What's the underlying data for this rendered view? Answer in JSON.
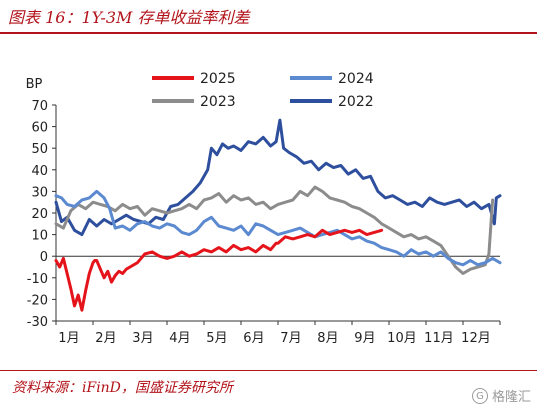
{
  "header": {
    "title": "图表 16：1Y-3M 存单收益率利差"
  },
  "footer": {
    "source": "资料来源：iFinD，国盛证券研究所",
    "watermark": "格隆汇"
  },
  "chart_data": {
    "type": "line",
    "title": "图表 16：1Y-3M 存单收益率利差",
    "ylabel": "BP",
    "xlabel": "",
    "ylim": [
      -30,
      70
    ],
    "yticks": [
      -30,
      -20,
      -10,
      0,
      10,
      20,
      30,
      40,
      50,
      60,
      70
    ],
    "x_tick_labels": [
      "1月",
      "2月",
      "3月",
      "4月",
      "5月",
      "6月",
      "7月",
      "8月",
      "9月",
      "10月",
      "11月",
      "12月"
    ],
    "xlim": [
      1,
      13
    ],
    "grid": false,
    "legend_placement": "top",
    "legend_order": [
      "2025",
      "2024",
      "2023",
      "2022"
    ],
    "series": [
      {
        "name": "2022",
        "color": "#2e4f9e",
        "width": 3,
        "x": [
          1.0,
          1.15,
          1.3,
          1.5,
          1.7,
          1.9,
          2.1,
          2.3,
          2.5,
          2.7,
          2.9,
          3.1,
          3.3,
          3.5,
          3.7,
          3.9,
          4.1,
          4.3,
          4.5,
          4.7,
          4.9,
          5.1,
          5.2,
          5.35,
          5.5,
          5.65,
          5.8,
          6.0,
          6.2,
          6.4,
          6.6,
          6.8,
          6.95,
          7.05,
          7.15,
          7.3,
          7.5,
          7.7,
          7.9,
          8.1,
          8.3,
          8.5,
          8.7,
          8.9,
          9.1,
          9.3,
          9.5,
          9.7,
          9.9,
          10.1,
          10.3,
          10.5,
          10.7,
          10.9,
          11.1,
          11.3,
          11.5,
          11.7,
          11.9,
          12.1,
          12.3,
          12.5,
          12.7,
          12.85,
          12.9,
          13.0
        ],
        "values": [
          25,
          16,
          18,
          12,
          10,
          17,
          14,
          17,
          15,
          17,
          19,
          17,
          16,
          15,
          18,
          17,
          23,
          24,
          27,
          30,
          34,
          40,
          50,
          47,
          52,
          50,
          51,
          49,
          53,
          52,
          55,
          51,
          53,
          63,
          50,
          48,
          46,
          43,
          44,
          40,
          43,
          41,
          42,
          38,
          40,
          36,
          37,
          30,
          27,
          28,
          26,
          24,
          25,
          23,
          27,
          25,
          24,
          25,
          26,
          23,
          25,
          22,
          24,
          15,
          27,
          28
        ]
      },
      {
        "name": "2023",
        "color": "#8c8c8c",
        "width": 3,
        "x": [
          1.0,
          1.2,
          1.4,
          1.6,
          1.8,
          2.0,
          2.2,
          2.4,
          2.6,
          2.8,
          3.0,
          3.2,
          3.4,
          3.6,
          3.8,
          4.0,
          4.2,
          4.4,
          4.6,
          4.8,
          5.0,
          5.2,
          5.4,
          5.6,
          5.8,
          6.0,
          6.2,
          6.4,
          6.6,
          6.8,
          7.0,
          7.2,
          7.4,
          7.6,
          7.8,
          8.0,
          8.2,
          8.4,
          8.6,
          8.8,
          9.0,
          9.2,
          9.4,
          9.6,
          9.8,
          10.0,
          10.2,
          10.4,
          10.6,
          10.8,
          11.0,
          11.2,
          11.4,
          11.6,
          11.8,
          12.0,
          12.2,
          12.4,
          12.6,
          12.7,
          12.8
        ],
        "values": [
          15,
          13,
          21,
          24,
          22,
          25,
          24,
          23,
          21,
          24,
          22,
          23,
          19,
          22,
          21,
          20,
          21,
          22,
          24,
          22,
          26,
          27,
          29,
          25,
          28,
          26,
          27,
          24,
          25,
          22,
          24,
          25,
          26,
          30,
          28,
          32,
          30,
          27,
          26,
          25,
          23,
          22,
          20,
          18,
          15,
          13,
          11,
          9,
          10,
          8,
          9,
          7,
          5,
          0,
          -5,
          -8,
          -6,
          -5,
          -4,
          1,
          26
        ]
      },
      {
        "name": "2024",
        "color": "#5b8ad0",
        "width": 3,
        "x": [
          1.0,
          1.15,
          1.3,
          1.5,
          1.7,
          1.9,
          2.1,
          2.3,
          2.45,
          2.6,
          2.8,
          3.0,
          3.2,
          3.4,
          3.6,
          3.8,
          4.0,
          4.2,
          4.4,
          4.6,
          4.8,
          5.0,
          5.2,
          5.4,
          5.6,
          5.8,
          6.0,
          6.2,
          6.4,
          6.6,
          6.8,
          7.0,
          7.2,
          7.4,
          7.6,
          7.8,
          8.0,
          8.2,
          8.4,
          8.6,
          8.8,
          9.0,
          9.2,
          9.4,
          9.6,
          9.8,
          10.0,
          10.2,
          10.4,
          10.6,
          10.8,
          11.0,
          11.2,
          11.4,
          11.6,
          11.8,
          12.0,
          12.2,
          12.4,
          12.6,
          12.8,
          13.0
        ],
        "values": [
          28,
          27,
          24,
          23,
          26,
          27,
          30,
          27,
          22,
          13,
          14,
          12,
          15,
          16,
          14,
          13,
          15,
          14,
          11,
          10,
          12,
          16,
          18,
          14,
          13,
          12,
          14,
          10,
          15,
          14,
          12,
          10,
          11,
          12,
          13,
          11,
          9,
          10,
          11,
          12,
          10,
          8,
          9,
          7,
          6,
          4,
          3,
          2,
          0,
          3,
          1,
          2,
          0,
          2,
          -1,
          -3,
          -4,
          -2,
          -4,
          -3,
          -1,
          -3
        ]
      },
      {
        "name": "2025",
        "color": "#e5141b",
        "width": 3,
        "x": [
          1.0,
          1.1,
          1.2,
          1.3,
          1.4,
          1.5,
          1.6,
          1.7,
          1.8,
          1.9,
          2.0,
          2.05,
          2.1,
          2.2,
          2.3,
          2.4,
          2.5,
          2.6,
          2.7,
          2.8,
          2.9,
          3.0,
          3.2,
          3.4,
          3.6,
          3.8,
          4.0,
          4.2,
          4.4,
          4.6,
          4.8,
          5.0,
          5.2,
          5.4,
          5.6,
          5.8,
          6.0,
          6.2,
          6.4,
          6.6,
          6.8,
          6.95,
          7.0,
          7.2,
          7.4,
          7.6,
          7.8,
          8.0,
          8.2,
          8.4,
          8.6,
          8.8,
          9.0,
          9.2,
          9.4,
          9.6,
          9.8
        ],
        "values": [
          -2,
          -5,
          -1,
          -8,
          -15,
          -23,
          -18,
          -25,
          -16,
          -8,
          -3,
          -2,
          -2,
          -6,
          -10,
          -7,
          -12,
          -9,
          -7,
          -8,
          -6,
          -5,
          -3,
          1,
          2,
          0,
          -1,
          0,
          2,
          0,
          1,
          3,
          2,
          4,
          2,
          5,
          3,
          4,
          2,
          5,
          3,
          6,
          6,
          9,
          8,
          9,
          10,
          9,
          12,
          10,
          11,
          12,
          11,
          12,
          10,
          11,
          12
        ]
      }
    ]
  }
}
